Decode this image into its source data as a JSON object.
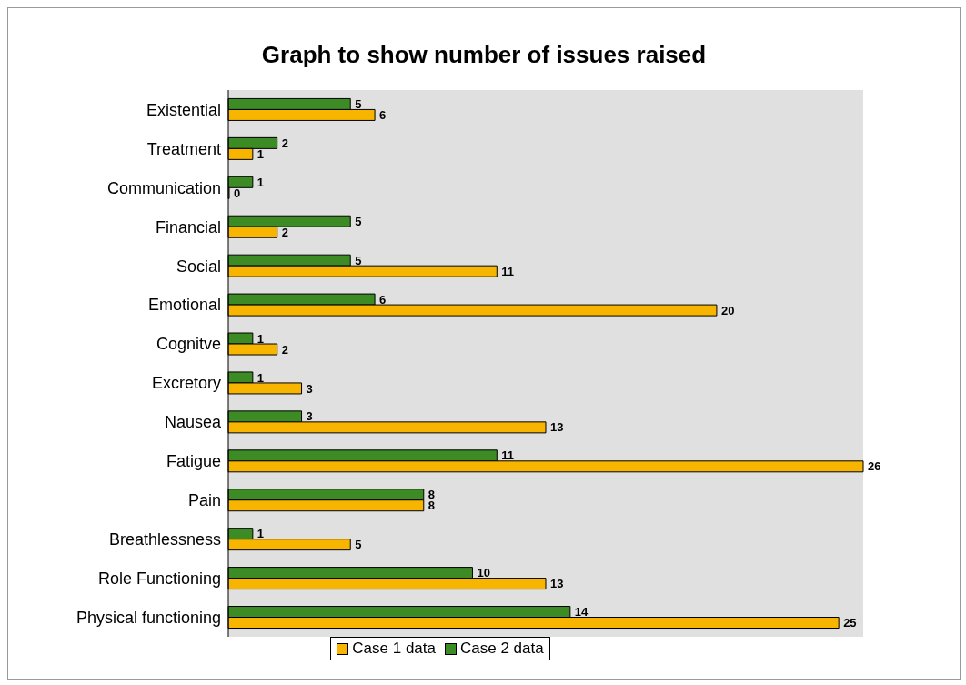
{
  "chart_data": {
    "type": "bar",
    "orientation": "horizontal",
    "title": "Graph to show number of issues raised",
    "categories": [
      "Existential",
      "Treatment",
      "Communication",
      "Financial",
      "Social",
      "Emotional",
      "Cognitve",
      "Excretory",
      "Nausea",
      "Fatigue",
      "Pain",
      "Breathlessness",
      "Role Functioning",
      "Physical functioning"
    ],
    "series": [
      {
        "name": "Case 1 data",
        "color": "#f7b500",
        "values": [
          6,
          1,
          0,
          2,
          11,
          20,
          2,
          3,
          13,
          26,
          8,
          5,
          13,
          25
        ]
      },
      {
        "name": "Case 2 data",
        "color": "#3d8b25",
        "values": [
          5,
          2,
          1,
          5,
          5,
          6,
          1,
          1,
          3,
          11,
          8,
          1,
          10,
          14
        ]
      }
    ],
    "data_labels": true,
    "legend": "bottom",
    "grid": false
  }
}
